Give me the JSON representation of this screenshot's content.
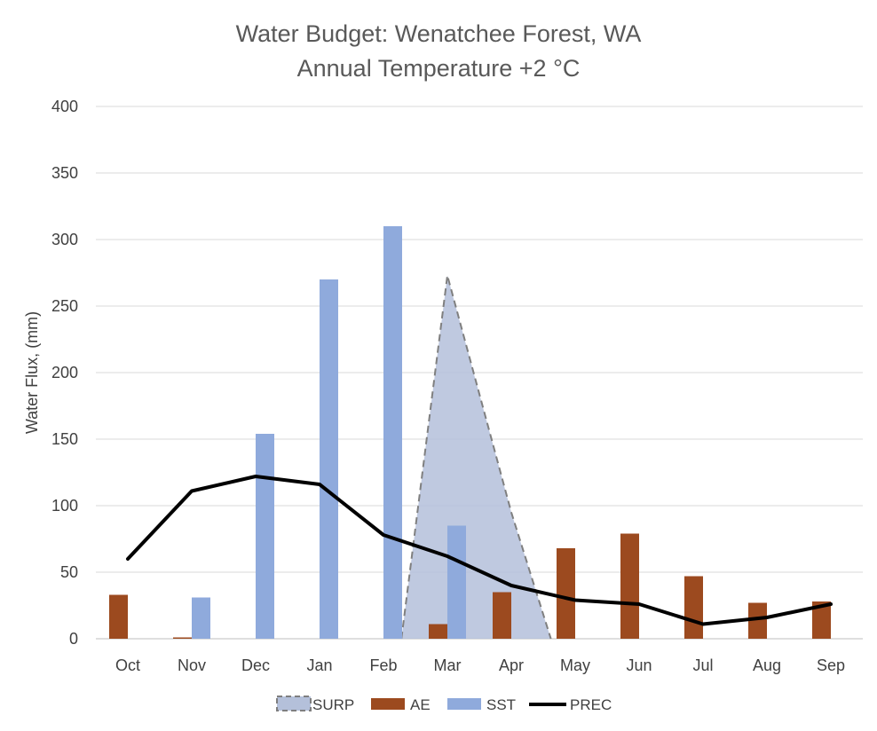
{
  "chart_data": {
    "type": "bar",
    "title": "Water Budget:  Wenatchee Forest, WA",
    "subtitle": "Annual Temperature +2 °C",
    "xlabel": "",
    "ylabel": "Water Flux, (mm)",
    "ylim": [
      0,
      400
    ],
    "yticks": [
      0,
      50,
      100,
      150,
      200,
      250,
      300,
      350,
      400
    ],
    "grid": true,
    "legend_position": "bottom",
    "categories": [
      "Oct",
      "Nov",
      "Dec",
      "Jan",
      "Feb",
      "Mar",
      "Apr",
      "May",
      "Jun",
      "Jul",
      "Aug",
      "Sep"
    ],
    "series": [
      {
        "name": "SURP",
        "type": "area",
        "style": "dashed-outline",
        "color": "#B4C0DA",
        "stroke": "#7F7F7F",
        "values": [
          0,
          0,
          0,
          0,
          0,
          273,
          95,
          0,
          0,
          0,
          0,
          0
        ]
      },
      {
        "name": "AE",
        "type": "bar",
        "color": "#9C4A1F",
        "values": [
          33,
          1,
          0,
          0,
          0,
          11,
          35,
          68,
          79,
          47,
          27,
          28
        ]
      },
      {
        "name": "SST",
        "type": "bar",
        "color": "#8FAADC",
        "values": [
          0,
          31,
          154,
          270,
          310,
          85,
          0,
          0,
          0,
          0,
          0,
          0
        ]
      },
      {
        "name": "PREC",
        "type": "line",
        "color": "#000000",
        "values": [
          60,
          111,
          122,
          116,
          78,
          62,
          40,
          29,
          26,
          11,
          16,
          26
        ]
      }
    ]
  }
}
